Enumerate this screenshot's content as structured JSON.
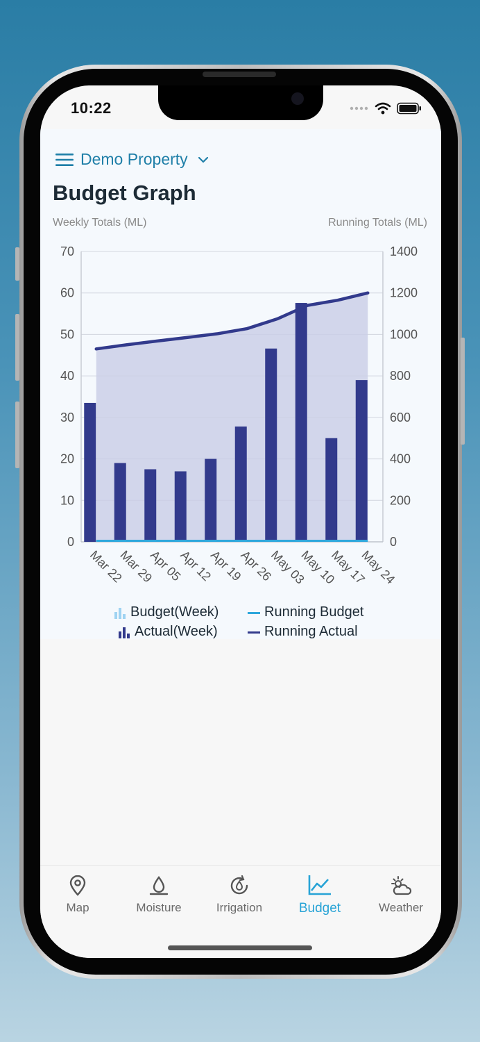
{
  "status_bar": {
    "time": "10:22"
  },
  "header": {
    "property_name": "Demo Property",
    "title": "Budget Graph"
  },
  "chart": {
    "left_axis_title": "Weekly Totals (ML)",
    "right_axis_title": "Running Totals (ML)"
  },
  "chart_data": {
    "type": "bar",
    "categories": [
      "Mar 22",
      "Mar 29",
      "Apr 05",
      "Apr 12",
      "Apr 19",
      "Apr 26",
      "May 03",
      "May 10",
      "May 17",
      "May 24"
    ],
    "series": [
      {
        "name": "Actual(Week)",
        "type": "bar",
        "axis": "left",
        "values": [
          33.5,
          19,
          17.5,
          17,
          20,
          27.8,
          46.6,
          57.6,
          25,
          39
        ],
        "color": "#323a8c"
      },
      {
        "name": "Budget(Week)",
        "type": "bar",
        "axis": "left",
        "values": [
          0,
          0,
          0,
          0,
          0,
          0,
          0,
          0,
          0,
          0
        ],
        "color": "#9fd3f2"
      },
      {
        "name": "Running Actual",
        "type": "line",
        "axis": "right",
        "values": [
          930,
          950,
          968,
          985,
          1003,
          1028,
          1075,
          1140,
          1165,
          1200
        ],
        "color": "#323a8c"
      },
      {
        "name": "Running Budget",
        "type": "line",
        "axis": "right",
        "values": [
          0,
          0,
          0,
          0,
          0,
          0,
          0,
          0,
          0,
          0
        ],
        "color": "#2ea7dc"
      }
    ],
    "left_axis": {
      "min": 0,
      "max": 70,
      "ticks": [
        0,
        10,
        20,
        30,
        40,
        50,
        60,
        70
      ]
    },
    "right_axis": {
      "min": 0,
      "max": 1400,
      "ticks": [
        0,
        200,
        400,
        600,
        800,
        1000,
        1200,
        1400
      ]
    },
    "grid": true,
    "legend_position": "bottom"
  },
  "legend": {
    "budget_week": "Budget(Week)",
    "running_budget": "Running Budget",
    "actual_week": "Actual(Week)",
    "running_actual": "Running Actual"
  },
  "tabs": [
    {
      "label": "Map",
      "icon": "map-pin-icon"
    },
    {
      "label": "Moisture",
      "icon": "water-drop-icon"
    },
    {
      "label": "Irrigation",
      "icon": "irrigation-icon"
    },
    {
      "label": "Budget",
      "icon": "chart-line-icon",
      "active": true
    },
    {
      "label": "Weather",
      "icon": "sun-cloud-icon"
    }
  ],
  "colors": {
    "accent": "#27a3d6",
    "property": "#1f7fa8",
    "actual": "#323a8c",
    "budget": "#9fd3f2"
  }
}
